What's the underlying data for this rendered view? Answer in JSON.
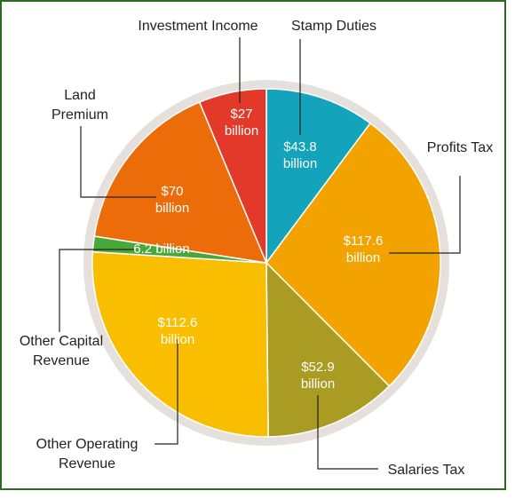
{
  "chart_data": {
    "type": "pie",
    "title": "",
    "slices": [
      {
        "name": "Stamp Duties",
        "value": 43.8,
        "value_label": [
          "$43.8",
          "billion"
        ],
        "color": "#13a3ba"
      },
      {
        "name": "Profits Tax",
        "value": 117.6,
        "value_label": [
          "$117.6",
          "billion"
        ],
        "color": "#f3a300"
      },
      {
        "name": "Salaries Tax",
        "value": 52.9,
        "value_label": [
          "$52.9",
          "billion"
        ],
        "color": "#aa9b22"
      },
      {
        "name": "Other Operating Revenue",
        "value": 112.6,
        "value_label": [
          "$112.6",
          "billion"
        ],
        "color": "#f9be00"
      },
      {
        "name": "Other Capital Revenue",
        "value": 6.2,
        "value_label": [
          "6.2 billion"
        ],
        "color": "#4aa83a"
      },
      {
        "name": "Land Premium",
        "value": 70,
        "value_label": [
          "$70",
          "billion"
        ],
        "color": "#ec6c0a"
      },
      {
        "name": "Investment Income",
        "value": 27,
        "value_label": [
          "$27",
          "billion"
        ],
        "color": "#e3392a"
      }
    ],
    "category_labels": {
      "Stamp Duties": [
        "Stamp Duties"
      ],
      "Profits Tax": [
        "Profits Tax"
      ],
      "Salaries Tax": [
        "Salaries Tax"
      ],
      "Other Operating Revenue": [
        "Other Operating",
        "Revenue"
      ],
      "Other Capital Revenue": [
        "Other Capital",
        "Revenue"
      ],
      "Land Premium": [
        "Land",
        "Premium"
      ],
      "Investment Income": [
        "Investment Income"
      ]
    },
    "ring_color": "#e6e0dc",
    "frame_color": "#2d6b22"
  }
}
